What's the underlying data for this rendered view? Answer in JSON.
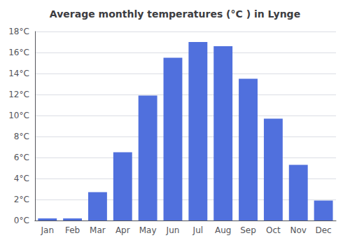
{
  "chart_data": {
    "type": "bar",
    "title": "Average monthly temperatures (°C ) in Lynge",
    "categories": [
      "Jan",
      "Feb",
      "Mar",
      "Apr",
      "May",
      "Jun",
      "Jul",
      "Aug",
      "Sep",
      "Oct",
      "Nov",
      "Dec"
    ],
    "values": [
      0.2,
      0.2,
      2.7,
      6.5,
      11.9,
      15.5,
      17.0,
      16.6,
      13.5,
      9.7,
      5.3,
      1.9
    ],
    "ylim": [
      0,
      18
    ],
    "yticks": [
      {
        "value": 0,
        "label": "0°C"
      },
      {
        "value": 2,
        "label": "2°C"
      },
      {
        "value": 4,
        "label": "4°C"
      },
      {
        "value": 6,
        "label": "6°C"
      },
      {
        "value": 8,
        "label": "8°C"
      },
      {
        "value": 10,
        "label": "10°C"
      },
      {
        "value": 12,
        "label": "12°C"
      },
      {
        "value": 14,
        "label": "14°C"
      },
      {
        "value": 16,
        "label": "16°C"
      },
      {
        "value": 18,
        "label": "18°C"
      }
    ],
    "grid": true
  }
}
